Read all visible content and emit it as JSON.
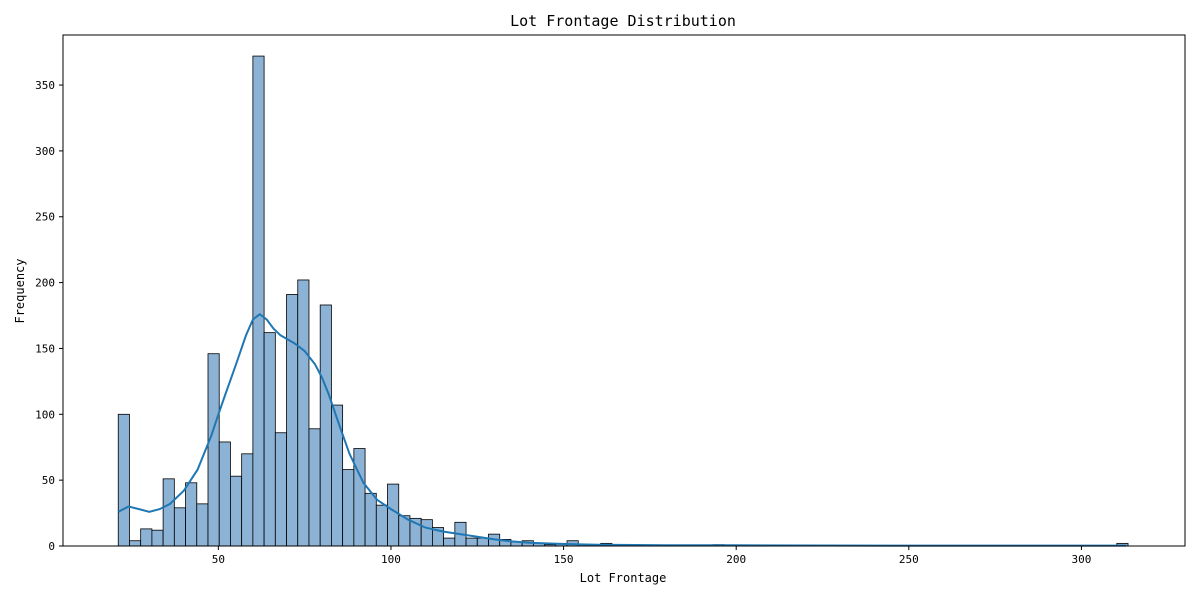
{
  "chart_data": {
    "type": "bar",
    "title": "Lot Frontage Distribution",
    "xlabel": "Lot Frontage",
    "ylabel": "Frequency",
    "xlim": [
      5,
      330
    ],
    "ylim": [
      0,
      388
    ],
    "xticks": [
      50,
      100,
      150,
      200,
      250,
      300
    ],
    "yticks": [
      0,
      50,
      100,
      150,
      200,
      250,
      300,
      350
    ],
    "bin_start": 21,
    "bin_width": 3.25,
    "counts": [
      100,
      4,
      13,
      12,
      51,
      29,
      48,
      32,
      146,
      79,
      53,
      70,
      372,
      162,
      86,
      191,
      202,
      89,
      183,
      107,
      58,
      74,
      40,
      31,
      47,
      23,
      21,
      20,
      14,
      6,
      18,
      6,
      6,
      9,
      5,
      3,
      4,
      2,
      1,
      2,
      4,
      1,
      1,
      2,
      0,
      0,
      0,
      0,
      0,
      0,
      0,
      0,
      0,
      1,
      0,
      0,
      0,
      0,
      0,
      0,
      0,
      0,
      0,
      0,
      0,
      0,
      0,
      0,
      0,
      0,
      0,
      0,
      0,
      0,
      0,
      0,
      0,
      0,
      0,
      0,
      0,
      0,
      0,
      0,
      0,
      0,
      0,
      0,
      0,
      2
    ],
    "kde": {
      "x": [
        21,
        24,
        27,
        30,
        33,
        36,
        40,
        44,
        48,
        50,
        52,
        55,
        58,
        60,
        62,
        64,
        66,
        68,
        70,
        72,
        75,
        78,
        80,
        82,
        85,
        88,
        92,
        96,
        100,
        105,
        110,
        115,
        120,
        125,
        130,
        135,
        140,
        150,
        160,
        180,
        200,
        250,
        313
      ],
      "y": [
        26,
        30,
        28,
        26,
        28,
        32,
        42,
        58,
        84,
        100,
        115,
        137,
        160,
        172,
        176,
        172,
        165,
        160,
        157,
        154,
        148,
        138,
        128,
        115,
        92,
        70,
        48,
        35,
        28,
        20,
        14,
        11,
        9,
        7,
        5,
        3.5,
        2.5,
        1.5,
        1,
        0.5,
        0.5,
        0.3,
        0.3
      ]
    },
    "colors": {
      "bar_fill": "#8cb3d5",
      "bar_edge": "#000000",
      "kde_line": "#1f77b4"
    },
    "grid": false,
    "legend": "none"
  }
}
